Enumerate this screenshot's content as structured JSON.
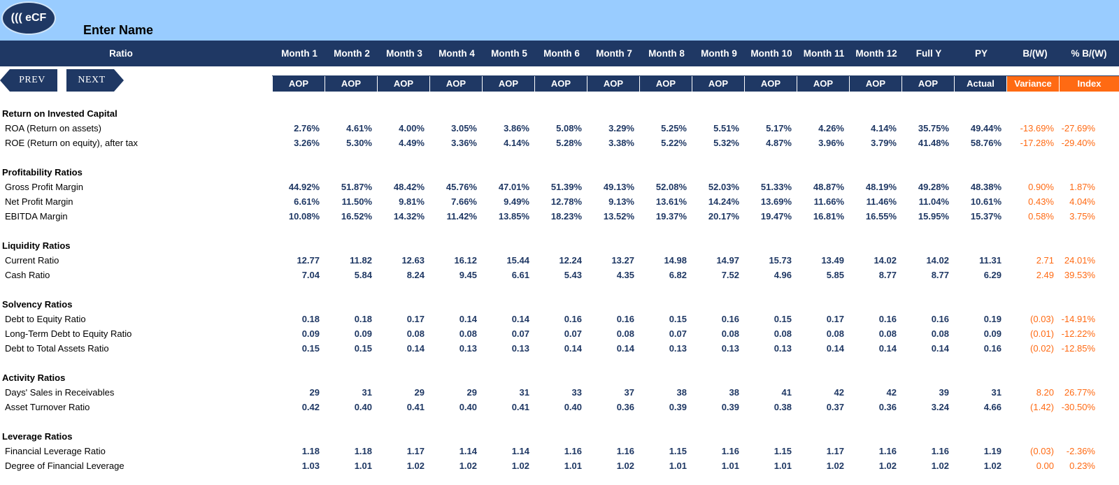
{
  "header": {
    "logo_text": "((( eCF",
    "company_name": "Enter Name"
  },
  "nav": {
    "prev_label": "PREV",
    "next_label": "NEXT"
  },
  "columns": [
    "Ratio",
    "Month 1",
    "Month 2",
    "Month 3",
    "Month 4",
    "Month 5",
    "Month 6",
    "Month 7",
    "Month 8",
    "Month 9",
    "Month 10",
    "Month 11",
    "Month 12",
    "Full Y",
    "PY",
    "B/(W)",
    "% B/(W)"
  ],
  "subheaders": [
    "AOP",
    "AOP",
    "AOP",
    "AOP",
    "AOP",
    "AOP",
    "AOP",
    "AOP",
    "AOP",
    "AOP",
    "AOP",
    "AOP",
    "AOP",
    "Actual",
    "Variance",
    "Index"
  ],
  "colors": {
    "navy": "#1f3864",
    "accent_orange": "#ff6a13",
    "top_bar": "#99ccff"
  },
  "sections": [
    {
      "title": "Return on Invested Capital",
      "rows": [
        {
          "label": "ROA (Return on assets)",
          "values": [
            "2.76%",
            "4.61%",
            "4.00%",
            "3.05%",
            "3.86%",
            "5.08%",
            "3.29%",
            "5.25%",
            "5.51%",
            "5.17%",
            "4.26%",
            "4.14%",
            "35.75%",
            "49.44%",
            "-13.69%",
            "-27.69%"
          ]
        },
        {
          "label": "ROE (Return on equity), after tax",
          "values": [
            "3.26%",
            "5.30%",
            "4.49%",
            "3.36%",
            "4.14%",
            "5.28%",
            "3.38%",
            "5.22%",
            "5.32%",
            "4.87%",
            "3.96%",
            "3.79%",
            "41.48%",
            "58.76%",
            "-17.28%",
            "-29.40%"
          ]
        }
      ]
    },
    {
      "title": "Profitability Ratios",
      "rows": [
        {
          "label": "Gross Profit Margin",
          "values": [
            "44.92%",
            "51.87%",
            "48.42%",
            "45.76%",
            "47.01%",
            "51.39%",
            "49.13%",
            "52.08%",
            "52.03%",
            "51.33%",
            "48.87%",
            "48.19%",
            "49.28%",
            "48.38%",
            "0.90%",
            "1.87%"
          ]
        },
        {
          "label": "Net Profit Margin",
          "values": [
            "6.61%",
            "11.50%",
            "9.81%",
            "7.66%",
            "9.49%",
            "12.78%",
            "9.13%",
            "13.61%",
            "14.24%",
            "13.69%",
            "11.66%",
            "11.46%",
            "11.04%",
            "10.61%",
            "0.43%",
            "4.04%"
          ]
        },
        {
          "label": "EBITDA Margin",
          "values": [
            "10.08%",
            "16.52%",
            "14.32%",
            "11.42%",
            "13.85%",
            "18.23%",
            "13.52%",
            "19.37%",
            "20.17%",
            "19.47%",
            "16.81%",
            "16.55%",
            "15.95%",
            "15.37%",
            "0.58%",
            "3.75%"
          ]
        }
      ]
    },
    {
      "title": "Liquidity Ratios",
      "rows": [
        {
          "label": "Current Ratio",
          "values": [
            "12.77",
            "11.82",
            "12.63",
            "16.12",
            "15.44",
            "12.24",
            "13.27",
            "14.98",
            "14.97",
            "15.73",
            "13.49",
            "14.02",
            "14.02",
            "11.31",
            "2.71",
            "24.01%"
          ]
        },
        {
          "label": "Cash Ratio",
          "values": [
            "7.04",
            "5.84",
            "8.24",
            "9.45",
            "6.61",
            "5.43",
            "4.35",
            "6.82",
            "7.52",
            "4.96",
            "5.85",
            "8.77",
            "8.77",
            "6.29",
            "2.49",
            "39.53%"
          ]
        }
      ]
    },
    {
      "title": "Solvency Ratios",
      "rows": [
        {
          "label": "Debt to Equity Ratio",
          "values": [
            "0.18",
            "0.18",
            "0.17",
            "0.14",
            "0.14",
            "0.16",
            "0.16",
            "0.15",
            "0.16",
            "0.15",
            "0.17",
            "0.16",
            "0.16",
            "0.19",
            "(0.03)",
            "-14.91%"
          ]
        },
        {
          "label": "Long-Term Debt to Equity Ratio",
          "values": [
            "0.09",
            "0.09",
            "0.08",
            "0.08",
            "0.07",
            "0.07",
            "0.08",
            "0.07",
            "0.08",
            "0.08",
            "0.08",
            "0.08",
            "0.08",
            "0.09",
            "(0.01)",
            "-12.22%"
          ]
        },
        {
          "label": "Debt to Total Assets Ratio",
          "values": [
            "0.15",
            "0.15",
            "0.14",
            "0.13",
            "0.13",
            "0.14",
            "0.14",
            "0.13",
            "0.13",
            "0.13",
            "0.14",
            "0.14",
            "0.14",
            "0.16",
            "(0.02)",
            "-12.85%"
          ]
        }
      ]
    },
    {
      "title": "Activity Ratios",
      "rows": [
        {
          "label": "Days' Sales in Receivables",
          "values": [
            "29",
            "31",
            "29",
            "29",
            "31",
            "33",
            "37",
            "38",
            "38",
            "41",
            "42",
            "42",
            "39",
            "31",
            "8.20",
            "26.77%"
          ]
        },
        {
          "label": "Asset Turnover Ratio",
          "values": [
            "0.42",
            "0.40",
            "0.41",
            "0.40",
            "0.41",
            "0.40",
            "0.36",
            "0.39",
            "0.39",
            "0.38",
            "0.37",
            "0.36",
            "3.24",
            "4.66",
            "(1.42)",
            "-30.50%"
          ]
        }
      ]
    },
    {
      "title": "Leverage Ratios",
      "rows": [
        {
          "label": "Financial Leverage Ratio",
          "values": [
            "1.18",
            "1.18",
            "1.17",
            "1.14",
            "1.14",
            "1.16",
            "1.16",
            "1.15",
            "1.16",
            "1.15",
            "1.17",
            "1.16",
            "1.16",
            "1.19",
            "(0.03)",
            "-2.36%"
          ]
        },
        {
          "label": "Degree of Financial Leverage",
          "values": [
            "1.03",
            "1.01",
            "1.02",
            "1.02",
            "1.02",
            "1.01",
            "1.02",
            "1.01",
            "1.01",
            "1.01",
            "1.02",
            "1.02",
            "1.02",
            "1.02",
            "0.00",
            "0.23%"
          ]
        }
      ]
    }
  ]
}
